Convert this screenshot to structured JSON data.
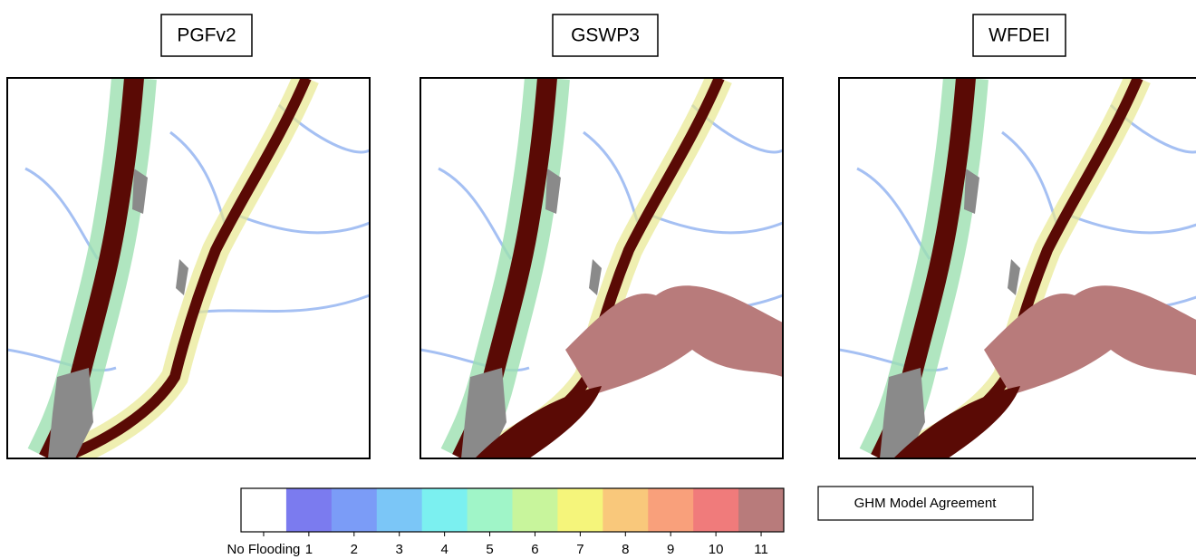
{
  "panels": [
    {
      "title": "PGFv2"
    },
    {
      "title": "GSWP3"
    },
    {
      "title": "WFDEI"
    }
  ],
  "colorbar": {
    "title": "GHM Model Agreement",
    "entries": [
      {
        "label": "No Flooding",
        "color": "#ffffff"
      },
      {
        "label": "1",
        "color": "#7b7bef"
      },
      {
        "label": "2",
        "color": "#7b9cf7"
      },
      {
        "label": "3",
        "color": "#7bc6f7"
      },
      {
        "label": "4",
        "color": "#7bf0f0"
      },
      {
        "label": "5",
        "color": "#a0f5c8"
      },
      {
        "label": "6",
        "color": "#c8f59c"
      },
      {
        "label": "7",
        "color": "#f5f57b"
      },
      {
        "label": "8",
        "color": "#f9c87b"
      },
      {
        "label": "9",
        "color": "#f9a07b"
      },
      {
        "label": "10",
        "color": "#f07b7b"
      },
      {
        "label": "11",
        "color": "#b87b7b"
      }
    ]
  }
}
